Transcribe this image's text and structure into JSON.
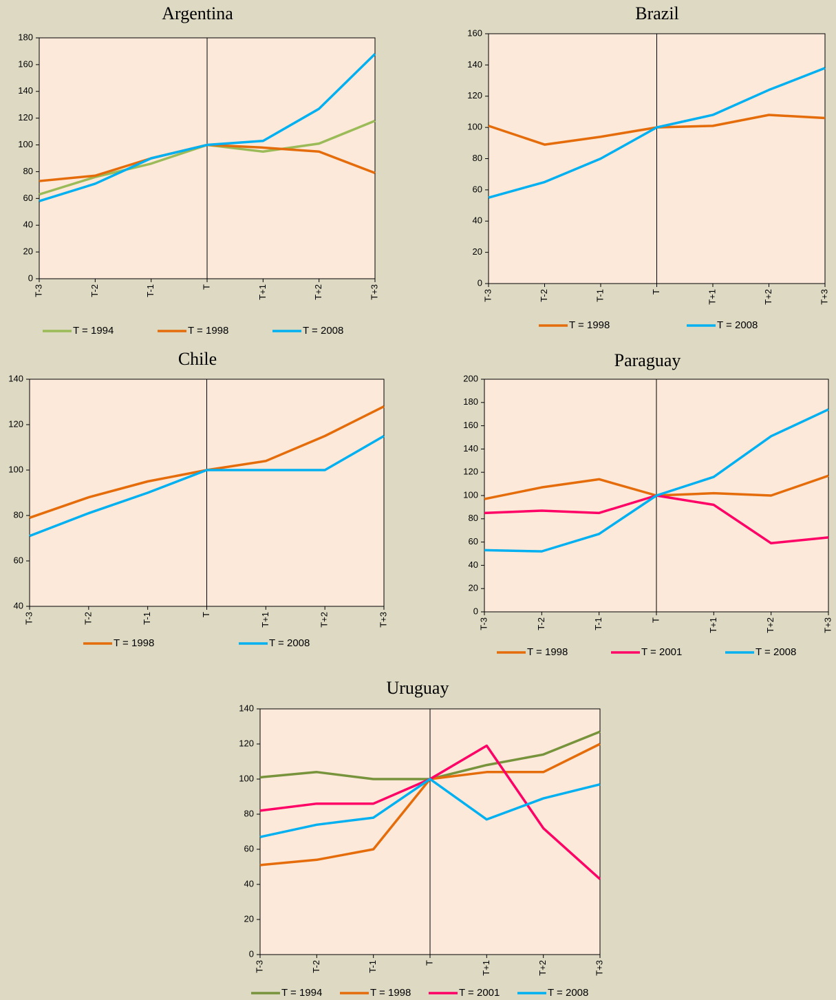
{
  "chart_data": [
    {
      "type": "line",
      "title": "Argentina",
      "categories": [
        "T-3",
        "T-2",
        "T-1",
        "T",
        "T+1",
        "T+2",
        "T+3"
      ],
      "ylim": [
        0,
        180
      ],
      "yticks": [
        0,
        20,
        40,
        60,
        80,
        100,
        120,
        140,
        160,
        180
      ],
      "legend": "bottom",
      "series": [
        {
          "name": "T = 1994",
          "color": "#9bbb59",
          "values": [
            63,
            76,
            86,
            100,
            95,
            101,
            118
          ]
        },
        {
          "name": "T = 1998",
          "color": "#e46c0a",
          "values": [
            73,
            77,
            90,
            100,
            98,
            95,
            79
          ]
        },
        {
          "name": "T = 2008",
          "color": "#00b0f0",
          "values": [
            58,
            71,
            90,
            100,
            103,
            127,
            168
          ]
        }
      ]
    },
    {
      "type": "line",
      "title": "Brazil",
      "categories": [
        "T-3",
        "T-2",
        "T-1",
        "T",
        "T+1",
        "T+2",
        "T+3"
      ],
      "ylim": [
        0,
        160
      ],
      "yticks": [
        0,
        20,
        40,
        60,
        80,
        100,
        120,
        140,
        160
      ],
      "legend": "bottom",
      "series": [
        {
          "name": "T = 1998",
          "color": "#e46c0a",
          "values": [
            101,
            89,
            94,
            100,
            101,
            108,
            106
          ]
        },
        {
          "name": "T = 2008",
          "color": "#00b0f0",
          "values": [
            55,
            65,
            80,
            100,
            108,
            124,
            138
          ]
        }
      ]
    },
    {
      "type": "line",
      "title": "Chile",
      "categories": [
        "T-3",
        "T-2",
        "T-1",
        "T",
        "T+1",
        "T+2",
        "T+3"
      ],
      "ylim": [
        40,
        140
      ],
      "yticks": [
        40,
        60,
        80,
        100,
        120,
        140
      ],
      "legend": "bottom",
      "series": [
        {
          "name": "T = 1998",
          "color": "#e46c0a",
          "values": [
            79,
            88,
            95,
            100,
            104,
            115,
            128
          ]
        },
        {
          "name": "T = 2008",
          "color": "#00b0f0",
          "values": [
            71,
            81,
            90,
            100,
            100,
            100,
            115
          ]
        }
      ]
    },
    {
      "type": "line",
      "title": "Paraguay",
      "categories": [
        "T-3",
        "T-2",
        "T-1",
        "T",
        "T+1",
        "T+2",
        "T+3"
      ],
      "ylim": [
        0,
        200
      ],
      "yticks": [
        0,
        20,
        40,
        60,
        80,
        100,
        120,
        140,
        160,
        180,
        200
      ],
      "legend": "bottom",
      "series": [
        {
          "name": "T = 1998",
          "color": "#e46c0a",
          "values": [
            97,
            107,
            114,
            100,
            102,
            100,
            117
          ]
        },
        {
          "name": "T = 2001",
          "color": "#ff0066",
          "values": [
            85,
            87,
            85,
            100,
            92,
            59,
            64
          ]
        },
        {
          "name": "T = 2008",
          "color": "#00b0f0",
          "values": [
            53,
            52,
            67,
            100,
            116,
            151,
            174
          ]
        }
      ]
    },
    {
      "type": "line",
      "title": "Uruguay",
      "categories": [
        "T-3",
        "T-2",
        "T-1",
        "T",
        "T+1",
        "T+2",
        "T+3"
      ],
      "ylim": [
        0,
        140
      ],
      "yticks": [
        0,
        20,
        40,
        60,
        80,
        100,
        120,
        140
      ],
      "legend": "bottom",
      "series": [
        {
          "name": "T = 1994",
          "color": "#77933c",
          "values": [
            101,
            104,
            100,
            100,
            108,
            114,
            127
          ]
        },
        {
          "name": "T = 1998",
          "color": "#e46c0a",
          "values": [
            51,
            54,
            60,
            100,
            104,
            104,
            120
          ]
        },
        {
          "name": "T = 2001",
          "color": "#ff0066",
          "values": [
            82,
            86,
            86,
            100,
            119,
            72,
            43
          ]
        },
        {
          "name": "T = 2008",
          "color": "#00b0f0",
          "values": [
            67,
            74,
            78,
            100,
            77,
            89,
            97
          ]
        }
      ]
    }
  ]
}
